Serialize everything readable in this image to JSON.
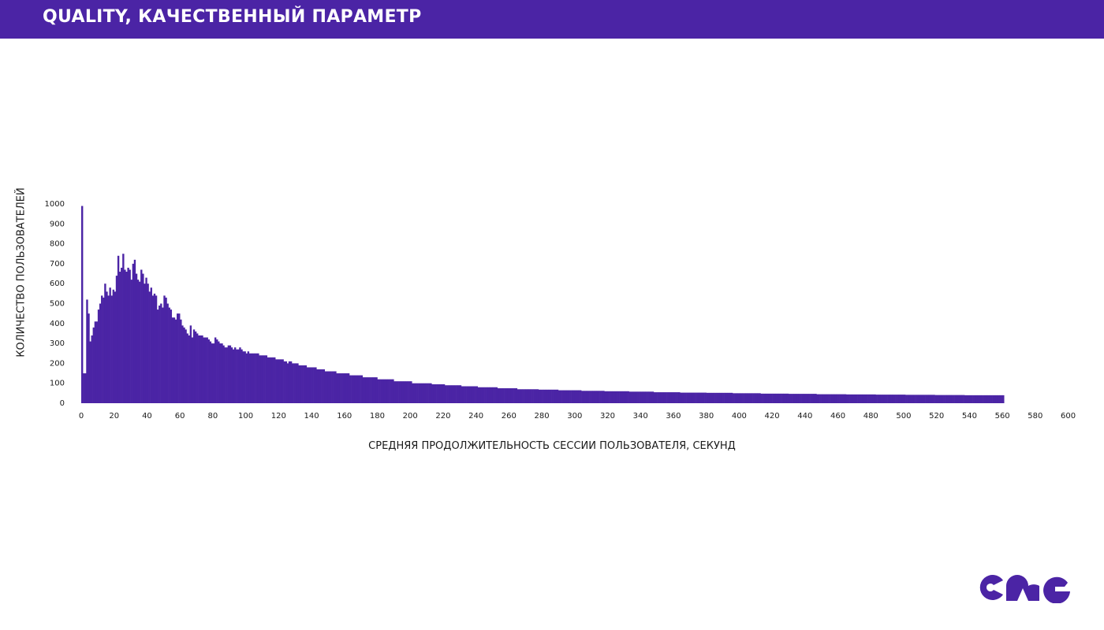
{
  "header": {
    "title": "QUALITY, КАЧЕСТВЕННЫЙ ПАРАМЕТР"
  },
  "colors": {
    "brand": "#4b24a5",
    "bars": "#4b24a5",
    "text": "#1a1a1a"
  },
  "logo": {
    "icon": "cmg-logo-icon",
    "text": "CMG"
  },
  "chart_data": {
    "type": "bar",
    "title": "",
    "xlabel": "СРЕДНЯЯ ПРОДОЛЖИТЕЛЬНОСТЬ СЕССИИ ПОЛЬЗОВАТЕЛЯ, СЕКУНД",
    "ylabel": "КОЛИЧЕСТВО ПОЛЬЗОВАТЕЛЕЙ",
    "xlim": [
      0,
      605
    ],
    "ylim": [
      0,
      1000
    ],
    "grid": false,
    "legend": "none",
    "xticks": [
      "0",
      "20",
      "40",
      "60",
      "80",
      "100",
      "120",
      "140",
      "160",
      "180",
      "200",
      "220",
      "240",
      "260",
      "280",
      "300",
      "320",
      "340",
      "360",
      "380",
      "400",
      "420",
      "440",
      "460",
      "480",
      "500",
      "520",
      "540",
      "560",
      "580",
      "600"
    ],
    "yticks": [
      "0",
      "100",
      "200",
      "300",
      "400",
      "500",
      "600",
      "700",
      "800",
      "900",
      "1000"
    ],
    "bin_width": 1,
    "x_start": 0,
    "values": [
      990,
      150,
      150,
      520,
      450,
      310,
      340,
      380,
      410,
      410,
      470,
      500,
      540,
      530,
      600,
      560,
      540,
      580,
      540,
      570,
      560,
      640,
      740,
      660,
      680,
      750,
      670,
      660,
      680,
      670,
      620,
      700,
      720,
      650,
      620,
      610,
      670,
      650,
      600,
      630,
      600,
      560,
      580,
      540,
      550,
      540,
      470,
      490,
      500,
      480,
      540,
      530,
      500,
      480,
      470,
      430,
      430,
      420,
      450,
      450,
      420,
      390,
      380,
      370,
      350,
      340,
      390,
      330,
      370,
      360,
      350,
      340,
      340,
      340,
      330,
      330,
      330,
      320,
      310,
      300,
      300,
      330,
      320,
      310,
      300,
      300,
      290,
      280,
      280,
      290,
      290,
      280,
      270,
      280,
      270,
      270,
      280,
      270,
      260,
      260,
      250,
      260,
      250,
      250,
      250,
      250,
      250,
      250,
      240,
      240,
      240,
      240,
      240,
      230,
      230,
      230,
      230,
      230,
      220,
      220,
      220,
      220,
      220,
      210,
      210,
      200,
      210,
      210,
      200,
      200,
      200,
      200,
      190,
      190,
      190,
      190,
      190,
      180,
      180,
      180,
      180,
      180,
      180,
      170,
      170,
      170,
      170,
      170,
      160,
      160,
      160,
      160,
      160,
      160,
      160,
      150,
      150,
      150,
      150,
      150,
      150,
      150,
      150,
      140,
      140,
      140,
      140,
      140,
      140,
      140,
      140,
      130,
      130,
      130,
      130,
      130,
      130,
      130,
      130,
      130,
      120,
      120,
      120,
      120,
      120,
      120,
      120,
      120,
      120,
      120,
      110,
      110,
      110,
      110,
      110,
      110,
      110,
      110,
      110,
      110,
      110,
      100,
      100,
      100,
      100,
      100,
      100,
      100,
      100,
      100,
      100,
      100,
      100,
      95,
      95,
      95,
      95,
      95,
      95,
      95,
      95,
      90,
      90,
      90,
      90,
      90,
      90,
      90,
      90,
      90,
      90,
      85,
      85,
      85,
      85,
      85,
      85,
      85,
      85,
      85,
      85,
      80,
      80,
      80,
      80,
      80,
      80,
      80,
      80,
      80,
      80,
      80,
      80,
      75,
      75,
      75,
      75,
      75,
      75,
      75,
      75,
      75,
      75,
      75,
      75,
      70,
      70,
      70,
      70,
      70,
      70,
      70,
      70,
      70,
      70,
      70,
      70,
      70,
      68,
      68,
      68,
      68,
      68,
      68,
      68,
      68,
      68,
      68,
      68,
      68,
      65,
      65,
      65,
      65,
      65,
      65,
      65,
      65,
      65,
      65,
      65,
      65,
      65,
      65,
      62,
      62,
      62,
      62,
      62,
      62,
      62,
      62,
      62,
      62,
      62,
      62,
      62,
      62,
      60,
      60,
      60,
      60,
      60,
      60,
      60,
      60,
      60,
      60,
      60,
      60,
      60,
      60,
      60,
      58,
      58,
      58,
      58,
      58,
      58,
      58,
      58,
      58,
      58,
      58,
      58,
      58,
      58,
      58,
      55,
      55,
      55,
      55,
      55,
      55,
      55,
      55,
      55,
      55,
      55,
      55,
      55,
      55,
      55,
      55,
      53,
      53,
      53,
      53,
      53,
      53,
      53,
      53,
      53,
      53,
      53,
      53,
      53,
      53,
      53,
      53,
      52,
      52,
      52,
      52,
      52,
      52,
      52,
      52,
      52,
      52,
      52,
      52,
      52,
      52,
      52,
      52,
      50,
      50,
      50,
      50,
      50,
      50,
      50,
      50,
      50,
      50,
      50,
      50,
      50,
      50,
      50,
      50,
      50,
      48,
      48,
      48,
      48,
      48,
      48,
      48,
      48,
      48,
      48,
      48,
      48,
      48,
      48,
      48,
      48,
      48,
      47,
      47,
      47,
      47,
      47,
      47,
      47,
      47,
      47,
      47,
      47,
      47,
      47,
      47,
      47,
      47,
      47,
      45,
      45,
      45,
      45,
      45,
      45,
      45,
      45,
      45,
      45,
      45,
      45,
      45,
      45,
      45,
      45,
      45,
      45,
      44,
      44,
      44,
      44,
      44,
      44,
      44,
      44,
      44,
      44,
      44,
      44,
      44,
      44,
      44,
      44,
      44,
      44,
      43,
      43,
      43,
      43,
      43,
      43,
      43,
      43,
      43,
      43,
      43,
      43,
      43,
      43,
      43,
      43,
      43,
      43,
      42,
      42,
      42,
      42,
      42,
      42,
      42,
      42,
      42,
      42,
      42,
      42,
      42,
      42,
      42,
      42,
      42,
      42,
      41,
      41,
      41,
      41,
      41,
      41,
      41,
      41,
      41,
      41,
      41,
      41,
      41,
      41,
      41,
      41,
      41,
      41,
      40,
      40,
      40,
      40,
      40,
      40,
      40,
      40,
      40,
      40,
      40,
      40,
      40,
      40,
      40,
      40,
      40,
      40,
      40,
      40,
      40,
      40,
      40,
      40
    ]
  }
}
